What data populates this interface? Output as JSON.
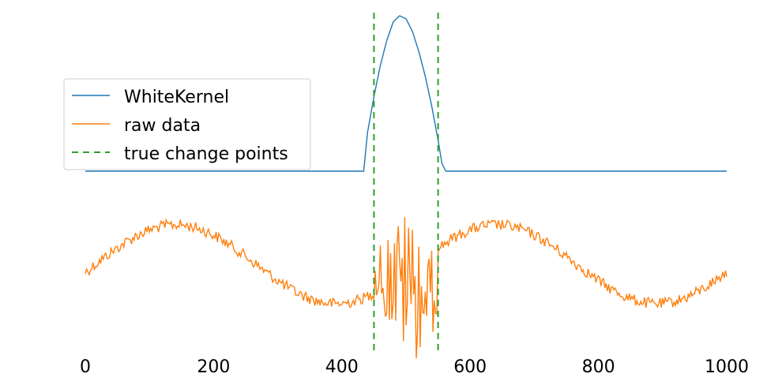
{
  "chart_data": {
    "type": "line",
    "title": "",
    "xlabel": "",
    "ylabel": "",
    "xlim": [
      0,
      1000
    ],
    "x_ticks": [
      "0",
      "200",
      "400",
      "600",
      "800",
      "1000"
    ],
    "grid": false,
    "legend_placement": "upper-left",
    "series": [
      {
        "name": "WhiteKernel",
        "color": "#1f77b4",
        "style": "solid",
        "x": [
          0,
          434,
          440,
          450,
          460,
          470,
          480,
          490,
          500,
          510,
          520,
          530,
          540,
          550,
          556,
          562,
          1000
        ],
        "y": [
          0,
          0,
          0.25,
          0.48,
          0.68,
          0.84,
          0.96,
          1.0,
          0.98,
          0.9,
          0.77,
          0.61,
          0.42,
          0.2,
          0.05,
          0,
          0
        ]
      },
      {
        "name": "raw data",
        "color": "#ff7f0e",
        "style": "solid",
        "x_range": [
          0,
          1000
        ],
        "description": "noisy sine wave; strongly noisy segment between change points"
      },
      {
        "name": "true change points",
        "color": "#2ca02c",
        "style": "dashed",
        "x": [
          450,
          550
        ]
      }
    ],
    "legend": [
      "WhiteKernel",
      "raw data",
      "true change points"
    ]
  }
}
